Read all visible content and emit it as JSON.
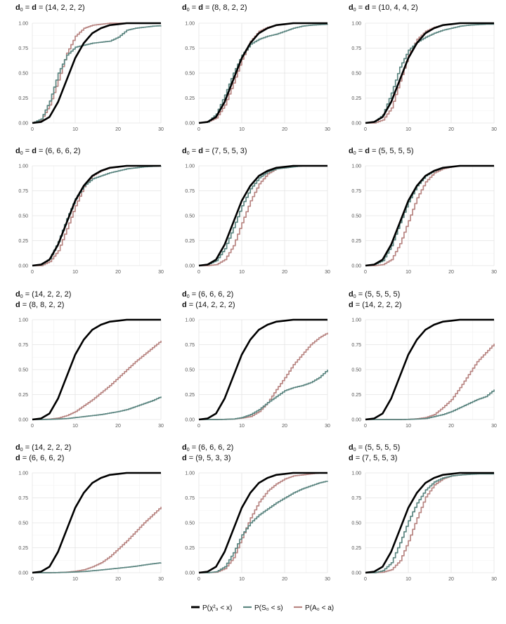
{
  "chart_data": [
    {
      "type": "line",
      "title_lines": [
        "d0 = d = (14, 2, 2, 2)"
      ],
      "x": [
        0,
        2,
        4,
        6,
        8,
        10,
        12,
        14,
        16,
        18,
        20,
        22,
        24,
        26,
        28,
        30
      ],
      "series": [
        {
          "key": "chi",
          "values": [
            0,
            0.01,
            0.06,
            0.21,
            0.43,
            0.65,
            0.8,
            0.9,
            0.95,
            0.98,
            0.99,
            1,
            1,
            1,
            1,
            1
          ]
        },
        {
          "key": "S",
          "values": [
            0,
            0.04,
            0.22,
            0.5,
            0.68,
            0.76,
            0.78,
            0.8,
            0.81,
            0.82,
            0.86,
            0.93,
            0.95,
            0.96,
            0.97,
            0.975
          ]
        },
        {
          "key": "A",
          "values": [
            0,
            0.03,
            0.18,
            0.43,
            0.7,
            0.87,
            0.95,
            0.98,
            0.99,
            1,
            1,
            1,
            1,
            1,
            1,
            1
          ]
        }
      ]
    },
    {
      "type": "line",
      "title_lines": [
        "d0 = d = (8, 8, 2, 2)"
      ],
      "x": [
        0,
        2,
        4,
        6,
        8,
        10,
        12,
        14,
        16,
        18,
        20,
        22,
        24,
        26,
        28,
        30
      ],
      "series": [
        {
          "key": "chi",
          "values": [
            0,
            0.01,
            0.06,
            0.21,
            0.43,
            0.65,
            0.8,
            0.9,
            0.95,
            0.98,
            0.99,
            1,
            1,
            1,
            1,
            1
          ]
        },
        {
          "key": "S",
          "values": [
            0,
            0.01,
            0.09,
            0.28,
            0.5,
            0.68,
            0.79,
            0.84,
            0.87,
            0.89,
            0.92,
            0.95,
            0.97,
            0.98,
            0.985,
            0.99
          ]
        },
        {
          "key": "A",
          "values": [
            0,
            0.01,
            0.05,
            0.18,
            0.4,
            0.64,
            0.82,
            0.92,
            0.96,
            0.98,
            0.99,
            1,
            1,
            1,
            1,
            1
          ]
        }
      ]
    },
    {
      "type": "line",
      "title_lines": [
        "d0 = d = (10, 4, 4, 2)"
      ],
      "x": [
        0,
        2,
        4,
        6,
        8,
        10,
        12,
        14,
        16,
        18,
        20,
        22,
        24,
        26,
        28,
        30
      ],
      "series": [
        {
          "key": "chi",
          "values": [
            0,
            0.01,
            0.06,
            0.21,
            0.43,
            0.65,
            0.8,
            0.9,
            0.95,
            0.98,
            0.99,
            1,
            1,
            1,
            1,
            1
          ]
        },
        {
          "key": "S",
          "values": [
            0,
            0.01,
            0.08,
            0.3,
            0.56,
            0.73,
            0.81,
            0.86,
            0.9,
            0.93,
            0.95,
            0.97,
            0.98,
            0.985,
            0.99,
            0.99
          ]
        },
        {
          "key": "A",
          "values": [
            0,
            0,
            0.03,
            0.15,
            0.42,
            0.68,
            0.84,
            0.92,
            0.96,
            0.98,
            0.99,
            1,
            1,
            1,
            1,
            1
          ]
        }
      ]
    },
    {
      "type": "line",
      "title_lines": [
        "d0 = d = (6, 6, 6, 2)"
      ],
      "x": [
        0,
        2,
        4,
        6,
        8,
        10,
        12,
        14,
        16,
        18,
        20,
        22,
        24,
        26,
        28,
        30
      ],
      "series": [
        {
          "key": "chi",
          "values": [
            0,
            0.01,
            0.06,
            0.21,
            0.43,
            0.65,
            0.8,
            0.9,
            0.95,
            0.98,
            0.99,
            1,
            1,
            1,
            1,
            1
          ]
        },
        {
          "key": "S",
          "values": [
            0,
            0.01,
            0.07,
            0.24,
            0.47,
            0.67,
            0.8,
            0.87,
            0.9,
            0.93,
            0.95,
            0.97,
            0.98,
            0.99,
            0.995,
            1
          ]
        },
        {
          "key": "A",
          "values": [
            0,
            0,
            0.04,
            0.15,
            0.37,
            0.6,
            0.79,
            0.9,
            0.95,
            0.98,
            0.99,
            1,
            1,
            1,
            1,
            1
          ]
        }
      ]
    },
    {
      "type": "line",
      "title_lines": [
        "d0 = d = (7, 5, 5, 3)"
      ],
      "x": [
        0,
        2,
        4,
        6,
        8,
        10,
        12,
        14,
        16,
        18,
        20,
        22,
        24,
        26,
        28,
        30
      ],
      "series": [
        {
          "key": "chi",
          "values": [
            0,
            0.01,
            0.06,
            0.21,
            0.43,
            0.65,
            0.8,
            0.9,
            0.95,
            0.98,
            0.99,
            1,
            1,
            1,
            1,
            1
          ]
        },
        {
          "key": "S",
          "values": [
            0,
            0.01,
            0.05,
            0.17,
            0.38,
            0.6,
            0.77,
            0.88,
            0.94,
            0.97,
            0.98,
            0.99,
            1,
            1,
            1,
            1
          ]
        },
        {
          "key": "A",
          "values": [
            0,
            0,
            0.01,
            0.06,
            0.2,
            0.43,
            0.65,
            0.82,
            0.92,
            0.97,
            0.99,
            1,
            1,
            1,
            1,
            1
          ]
        }
      ]
    },
    {
      "type": "line",
      "title_lines": [
        "d0 = d = (5, 5, 5, 5)"
      ],
      "x": [
        0,
        2,
        4,
        6,
        8,
        10,
        12,
        14,
        16,
        18,
        20,
        22,
        24,
        26,
        28,
        30
      ],
      "series": [
        {
          "key": "chi",
          "values": [
            0,
            0.01,
            0.06,
            0.21,
            0.43,
            0.65,
            0.8,
            0.9,
            0.95,
            0.98,
            0.99,
            1,
            1,
            1,
            1,
            1
          ]
        },
        {
          "key": "S",
          "values": [
            0,
            0.01,
            0.05,
            0.2,
            0.43,
            0.64,
            0.8,
            0.9,
            0.95,
            0.98,
            0.99,
            1,
            1,
            1,
            1,
            1
          ]
        },
        {
          "key": "A",
          "values": [
            0,
            0,
            0.01,
            0.06,
            0.22,
            0.45,
            0.68,
            0.84,
            0.93,
            0.97,
            0.99,
            1,
            1,
            1,
            1,
            1
          ]
        }
      ]
    },
    {
      "type": "line",
      "title_lines": [
        "d0 = (14, 2, 2, 2)",
        "d = (8, 8, 2, 2)"
      ],
      "x": [
        0,
        2,
        4,
        6,
        8,
        10,
        12,
        14,
        16,
        18,
        20,
        22,
        24,
        26,
        28,
        30
      ],
      "series": [
        {
          "key": "chi",
          "values": [
            0,
            0.01,
            0.06,
            0.21,
            0.43,
            0.65,
            0.8,
            0.9,
            0.95,
            0.98,
            0.99,
            1,
            1,
            1,
            1,
            1
          ]
        },
        {
          "key": "S",
          "values": [
            0,
            0,
            0.002,
            0.005,
            0.01,
            0.02,
            0.03,
            0.04,
            0.05,
            0.065,
            0.08,
            0.1,
            0.13,
            0.16,
            0.19,
            0.23
          ]
        },
        {
          "key": "A",
          "values": [
            0,
            0,
            0.005,
            0.015,
            0.04,
            0.08,
            0.14,
            0.2,
            0.27,
            0.34,
            0.42,
            0.5,
            0.58,
            0.65,
            0.72,
            0.79
          ]
        }
      ]
    },
    {
      "type": "line",
      "title_lines": [
        "d0 = (6, 6, 6, 2)",
        "d = (14, 2, 2, 2)"
      ],
      "x": [
        0,
        2,
        4,
        6,
        8,
        10,
        12,
        14,
        16,
        18,
        20,
        22,
        24,
        26,
        28,
        30
      ],
      "series": [
        {
          "key": "chi",
          "values": [
            0,
            0.01,
            0.06,
            0.21,
            0.43,
            0.65,
            0.8,
            0.9,
            0.95,
            0.98,
            0.99,
            1,
            1,
            1,
            1,
            1
          ]
        },
        {
          "key": "S",
          "values": [
            0,
            0,
            0,
            0.002,
            0.005,
            0.02,
            0.05,
            0.1,
            0.17,
            0.23,
            0.29,
            0.32,
            0.34,
            0.37,
            0.42,
            0.5
          ]
        },
        {
          "key": "A",
          "values": [
            0,
            0,
            0,
            0.002,
            0.005,
            0.015,
            0.03,
            0.08,
            0.17,
            0.3,
            0.42,
            0.55,
            0.65,
            0.75,
            0.82,
            0.87
          ]
        }
      ]
    },
    {
      "type": "line",
      "title_lines": [
        "d0 = (5, 5, 5, 5)",
        "d = (14, 2, 2, 2)"
      ],
      "x": [
        0,
        2,
        4,
        6,
        8,
        10,
        12,
        14,
        16,
        18,
        20,
        22,
        24,
        26,
        28,
        30
      ],
      "series": [
        {
          "key": "chi",
          "values": [
            0,
            0.01,
            0.06,
            0.21,
            0.43,
            0.65,
            0.8,
            0.9,
            0.95,
            0.98,
            0.99,
            1,
            1,
            1,
            1,
            1
          ]
        },
        {
          "key": "S",
          "values": [
            0,
            0,
            0,
            0,
            0,
            0.002,
            0.005,
            0.01,
            0.03,
            0.05,
            0.08,
            0.12,
            0.16,
            0.2,
            0.23,
            0.3
          ]
        },
        {
          "key": "A",
          "values": [
            0,
            0,
            0,
            0,
            0,
            0.002,
            0.008,
            0.02,
            0.05,
            0.12,
            0.2,
            0.32,
            0.45,
            0.58,
            0.67,
            0.76
          ]
        }
      ]
    },
    {
      "type": "line",
      "title_lines": [
        "d0 = (14, 2, 2, 2)",
        "d = (6, 6, 6, 2)"
      ],
      "x": [
        0,
        2,
        4,
        6,
        8,
        10,
        12,
        14,
        16,
        18,
        20,
        22,
        24,
        26,
        28,
        30
      ],
      "series": [
        {
          "key": "chi",
          "values": [
            0,
            0.01,
            0.06,
            0.21,
            0.43,
            0.65,
            0.8,
            0.9,
            0.95,
            0.98,
            0.99,
            1,
            1,
            1,
            1,
            1
          ]
        },
        {
          "key": "S",
          "values": [
            0,
            0,
            0,
            0.002,
            0.004,
            0.008,
            0.012,
            0.02,
            0.028,
            0.037,
            0.046,
            0.055,
            0.065,
            0.078,
            0.09,
            0.1
          ]
        },
        {
          "key": "A",
          "values": [
            0,
            0,
            0,
            0.002,
            0.006,
            0.015,
            0.03,
            0.06,
            0.1,
            0.16,
            0.24,
            0.32,
            0.41,
            0.5,
            0.58,
            0.66
          ]
        }
      ]
    },
    {
      "type": "line",
      "title_lines": [
        "d0 = (6, 6, 6, 2)",
        "d = (9, 5, 3, 3)"
      ],
      "x": [
        0,
        2,
        4,
        6,
        8,
        10,
        12,
        14,
        16,
        18,
        20,
        22,
        24,
        26,
        28,
        30
      ],
      "series": [
        {
          "key": "chi",
          "values": [
            0,
            0.01,
            0.06,
            0.21,
            0.43,
            0.65,
            0.8,
            0.9,
            0.95,
            0.98,
            0.99,
            1,
            1,
            1,
            1,
            1
          ]
        },
        {
          "key": "S",
          "values": [
            0,
            0,
            0.01,
            0.06,
            0.2,
            0.38,
            0.5,
            0.58,
            0.64,
            0.7,
            0.75,
            0.8,
            0.84,
            0.87,
            0.9,
            0.92
          ]
        },
        {
          "key": "A",
          "values": [
            0,
            0,
            0.005,
            0.04,
            0.15,
            0.35,
            0.55,
            0.71,
            0.82,
            0.89,
            0.94,
            0.97,
            0.98,
            0.99,
            1,
            1
          ]
        }
      ]
    },
    {
      "type": "line",
      "title_lines": [
        "d0 = (5, 5, 5, 5)",
        "d = (7, 5, 5, 3)"
      ],
      "x": [
        0,
        2,
        4,
        6,
        8,
        10,
        12,
        14,
        16,
        18,
        20,
        22,
        24,
        26,
        28,
        30
      ],
      "series": [
        {
          "key": "chi",
          "values": [
            0,
            0.01,
            0.06,
            0.21,
            0.43,
            0.65,
            0.8,
            0.9,
            0.95,
            0.98,
            0.99,
            1,
            1,
            1,
            1,
            1
          ]
        },
        {
          "key": "S",
          "values": [
            0,
            0,
            0.02,
            0.1,
            0.3,
            0.52,
            0.7,
            0.83,
            0.91,
            0.95,
            0.97,
            0.98,
            0.985,
            0.99,
            0.99,
            0.99
          ]
        },
        {
          "key": "A",
          "values": [
            0,
            0,
            0.005,
            0.03,
            0.12,
            0.32,
            0.55,
            0.76,
            0.88,
            0.94,
            0.97,
            0.98,
            0.99,
            0.99,
            1,
            1
          ]
        }
      ]
    }
  ],
  "axes": {
    "xlim": [
      0,
      30
    ],
    "ylim": [
      0,
      1
    ],
    "x_ticks": [
      "0",
      "10",
      "20",
      "30"
    ],
    "y_ticks": [
      "0.00",
      "0.25",
      "0.50",
      "0.75",
      "1.00"
    ],
    "grid": true
  },
  "legend": {
    "placement": "bottom-center",
    "items": [
      {
        "key": "chi",
        "label": "P(χ²₉ < x)",
        "color": "#000000"
      },
      {
        "key": "S",
        "label": "P(S₀ < s)",
        "color": "#5b8580"
      },
      {
        "key": "A",
        "label": "P(A₀ < a)",
        "color": "#b88582"
      }
    ]
  }
}
